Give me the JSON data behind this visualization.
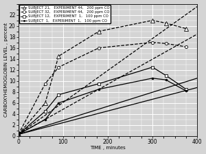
{
  "xlabel": "TIME , minutes",
  "ylabel": "CARBOXYHEMOGLOBIN LEVEL , percent",
  "xlim": [
    0,
    400
  ],
  "ylim": [
    0,
    24
  ],
  "yticks": [
    0,
    2,
    4,
    6,
    8,
    10,
    12,
    14,
    16,
    18,
    20,
    22
  ],
  "xticks": [
    0,
    100,
    200,
    300,
    400
  ],
  "legend_entries": [
    {
      "label": "SUBJECT 21,   EXPERIMENT 44,   200 ppm CO",
      "marker": "^",
      "linestyle": "--"
    },
    {
      "label": "SUBJECT 32,   EXPERIMENT 44,   200 ppm CO",
      "marker": "o",
      "linestyle": "--"
    },
    {
      "label": "SUBJECT 12,   EXPERIMENT  1,   100 ppm CO",
      "marker": "s",
      "linestyle": "-"
    },
    {
      "label": "SUBJECT  1,   EXPERIMENT  1,   100 ppm CO",
      "marker": ".",
      "linestyle": "-"
    }
  ],
  "series": [
    {
      "name": "Subject 21 measured",
      "x": [
        0,
        60,
        90,
        180,
        300,
        330,
        375
      ],
      "y": [
        0.3,
        6.0,
        14.5,
        19.0,
        21.0,
        20.5,
        19.5
      ],
      "marker": "^",
      "linestyle": "--",
      "markersize": 4,
      "markerfacecolor": "white",
      "zorder": 5
    },
    {
      "name": "Subject 21 predicted",
      "x": [
        0,
        400
      ],
      "y": [
        0.3,
        23.5
      ],
      "marker": "",
      "linestyle": "--",
      "markersize": 0,
      "markerfacecolor": "white",
      "zorder": 4
    },
    {
      "name": "Subject 32 measured",
      "x": [
        0,
        60,
        90,
        180,
        300,
        330,
        375
      ],
      "y": [
        0.3,
        9.5,
        12.5,
        16.0,
        17.0,
        16.8,
        16.2
      ],
      "marker": "o",
      "linestyle": "--",
      "markersize": 3,
      "markerfacecolor": "white",
      "zorder": 5
    },
    {
      "name": "Subject 32 predicted",
      "x": [
        0,
        400
      ],
      "y": [
        0.3,
        18.5
      ],
      "marker": "",
      "linestyle": "--",
      "markersize": 0,
      "markerfacecolor": "white",
      "zorder": 4
    },
    {
      "name": "Subject 12 measured",
      "x": [
        0,
        60,
        90,
        180,
        300,
        330,
        375
      ],
      "y": [
        0.3,
        4.5,
        7.5,
        9.5,
        12.5,
        11.0,
        8.5
      ],
      "marker": "s",
      "linestyle": "-",
      "markersize": 3,
      "markerfacecolor": "white",
      "zorder": 5
    },
    {
      "name": "Subject 12 predicted",
      "x": [
        0,
        400
      ],
      "y": [
        0.3,
        10.5
      ],
      "marker": "",
      "linestyle": "-",
      "markersize": 0,
      "markerfacecolor": "white",
      "zorder": 4
    },
    {
      "name": "Subject 1 measured",
      "x": [
        0,
        60,
        90,
        180,
        300,
        330,
        375
      ],
      "y": [
        0.3,
        3.0,
        6.0,
        8.5,
        10.5,
        10.2,
        8.2
      ],
      "marker": ".",
      "linestyle": "-",
      "markersize": 4,
      "markerfacecolor": "black",
      "zorder": 5
    },
    {
      "name": "Subject 1 predicted",
      "x": [
        0,
        400
      ],
      "y": [
        0.3,
        8.8
      ],
      "marker": "",
      "linestyle": "-",
      "markersize": 0,
      "markerfacecolor": "black",
      "zorder": 4
    }
  ],
  "bg_color": "#d4d4d4",
  "grid_major_color": "#ffffff",
  "grid_minor_color": "#e0e0e0",
  "font_size": 5.0,
  "tick_font_size": 5.5
}
